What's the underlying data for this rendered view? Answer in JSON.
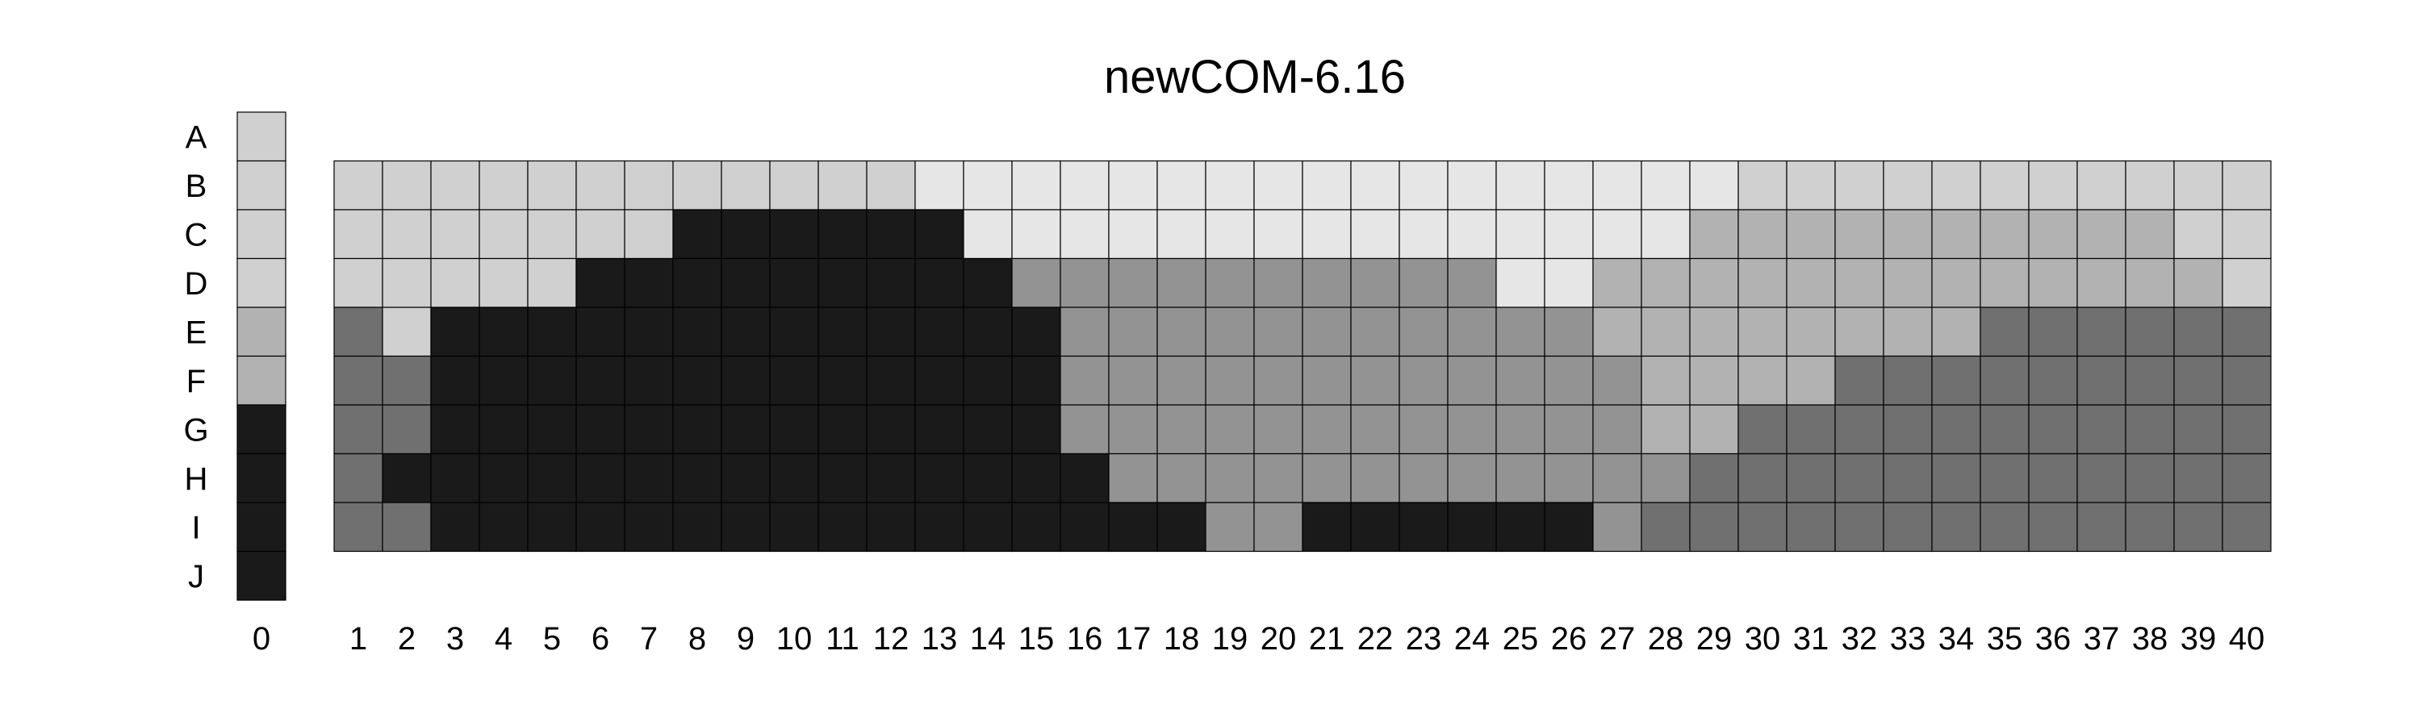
{
  "chart_data": {
    "type": "heatmap",
    "title": "newCOM-6.16",
    "xlabel": "",
    "ylabel": "",
    "row_labels": [
      "A",
      "B",
      "C",
      "D",
      "E",
      "F",
      "G",
      "H",
      "I",
      "J"
    ],
    "columns": [
      "0",
      "1",
      "2",
      "3",
      "4",
      "5",
      "6",
      "7",
      "8",
      "9",
      "10",
      "11",
      "12",
      "13",
      "14",
      "15",
      "16",
      "17",
      "18",
      "19",
      "20",
      "21",
      "22",
      "23",
      "24",
      "25",
      "26",
      "27",
      "28",
      "29",
      "30",
      "31",
      "32",
      "33",
      "34",
      "35",
      "36",
      "37",
      "38",
      "39",
      "40"
    ],
    "level_colors": {
      "1": "#e6e6e6",
      "2": "#d0d0d0",
      "3": "#b2b2b2",
      "4": "#939393",
      "5": "#707070",
      "6": "#1a1a1a"
    },
    "column0_rows": [
      "A",
      "B",
      "C",
      "D",
      "E",
      "F",
      "G",
      "H",
      "I",
      "J"
    ],
    "column0_levels": [
      2,
      2,
      2,
      2,
      3,
      3,
      6,
      6,
      6,
      6
    ],
    "grid_rows": [
      "B",
      "C",
      "D",
      "E",
      "F",
      "G",
      "H",
      "I"
    ],
    "grid_levels": [
      [
        2,
        2,
        2,
        2,
        2,
        2,
        2,
        2,
        2,
        2,
        2,
        2,
        1,
        1,
        1,
        1,
        1,
        1,
        1,
        1,
        1,
        1,
        1,
        1,
        1,
        1,
        1,
        1,
        1,
        2,
        2,
        2,
        2,
        2,
        2,
        2,
        2,
        2,
        2,
        2
      ],
      [
        2,
        2,
        2,
        2,
        2,
        2,
        2,
        6,
        6,
        6,
        6,
        6,
        6,
        1,
        1,
        1,
        1,
        1,
        1,
        1,
        1,
        1,
        1,
        1,
        1,
        1,
        1,
        1,
        3,
        3,
        3,
        3,
        3,
        3,
        3,
        3,
        3,
        3,
        2,
        2
      ],
      [
        2,
        2,
        2,
        2,
        2,
        6,
        6,
        6,
        6,
        6,
        6,
        6,
        6,
        6,
        4,
        4,
        4,
        4,
        4,
        4,
        4,
        4,
        4,
        4,
        1,
        1,
        3,
        3,
        3,
        3,
        3,
        3,
        3,
        3,
        3,
        3,
        3,
        3,
        3,
        2
      ],
      [
        5,
        2,
        6,
        6,
        6,
        6,
        6,
        6,
        6,
        6,
        6,
        6,
        6,
        6,
        6,
        4,
        4,
        4,
        4,
        4,
        4,
        4,
        4,
        4,
        4,
        4,
        3,
        3,
        3,
        3,
        3,
        3,
        3,
        3,
        5,
        5,
        5,
        5,
        5,
        5
      ],
      [
        5,
        5,
        6,
        6,
        6,
        6,
        6,
        6,
        6,
        6,
        6,
        6,
        6,
        6,
        6,
        4,
        4,
        4,
        4,
        4,
        4,
        4,
        4,
        4,
        4,
        4,
        4,
        3,
        3,
        3,
        3,
        5,
        5,
        5,
        5,
        5,
        5,
        5,
        5,
        5
      ],
      [
        5,
        5,
        6,
        6,
        6,
        6,
        6,
        6,
        6,
        6,
        6,
        6,
        6,
        6,
        6,
        4,
        4,
        4,
        4,
        4,
        4,
        4,
        4,
        4,
        4,
        4,
        4,
        3,
        3,
        5,
        5,
        5,
        5,
        5,
        5,
        5,
        5,
        5,
        5,
        5
      ],
      [
        5,
        6,
        6,
        6,
        6,
        6,
        6,
        6,
        6,
        6,
        6,
        6,
        6,
        6,
        6,
        6,
        4,
        4,
        4,
        4,
        4,
        4,
        4,
        4,
        4,
        4,
        4,
        4,
        5,
        5,
        5,
        5,
        5,
        5,
        5,
        5,
        5,
        5,
        5,
        5
      ],
      [
        5,
        5,
        6,
        6,
        6,
        6,
        6,
        6,
        6,
        6,
        6,
        6,
        6,
        6,
        6,
        6,
        6,
        6,
        4,
        4,
        6,
        6,
        6,
        6,
        6,
        6,
        4,
        5,
        5,
        5,
        5,
        5,
        5,
        5,
        5,
        5,
        5,
        5,
        5,
        5
      ]
    ]
  }
}
